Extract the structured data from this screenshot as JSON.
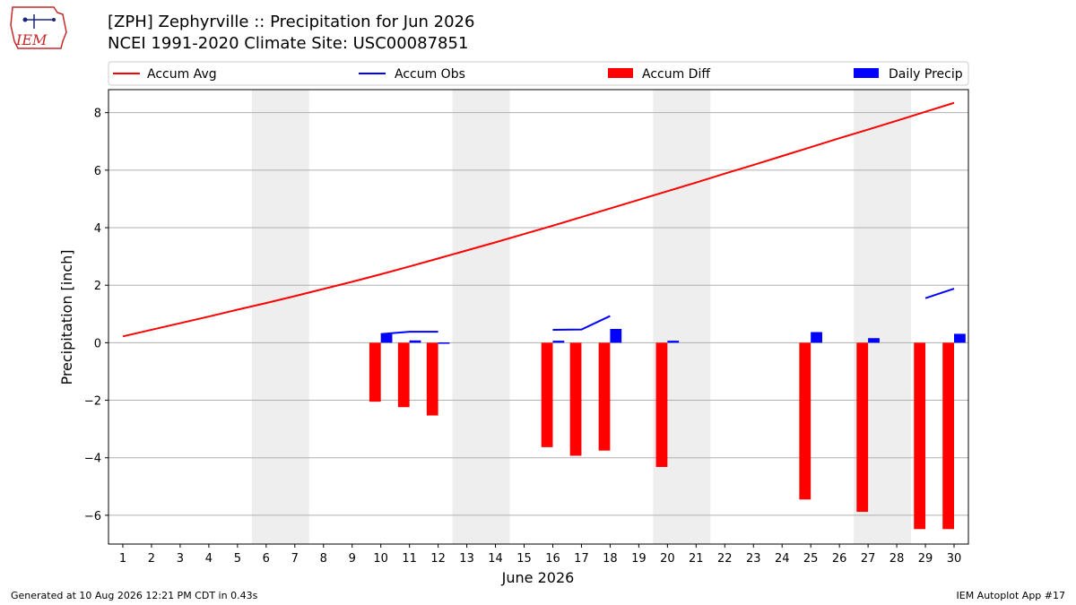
{
  "header": {
    "title_line1": "[ZPH] Zephyrville :: Precipitation for Jun 2026",
    "title_line2": "NCEI 1991-2020 Climate Site: USC00087851",
    "logo_text": "IEM"
  },
  "footer": {
    "generated": "Generated at 10 Aug 2026 12:21 PM CDT in 0.43s",
    "app": "IEM Autoplot App #17"
  },
  "colors": {
    "accum_avg": "#ff0000",
    "accum_obs": "#0000ff",
    "accum_diff": "#ff0000",
    "daily_precip": "#0000ff",
    "weekend_shade": "#eeeeee",
    "grid": "#b0b0b0"
  },
  "chart_data": {
    "type": "bar",
    "xlabel": "June 2026",
    "ylabel": "Precipitation [inch]",
    "xlim": [
      0.5,
      30.5
    ],
    "ylim": [
      -7.0,
      8.8
    ],
    "yticks": [
      -6,
      -4,
      -2,
      0,
      2,
      4,
      6,
      8
    ],
    "grid": true,
    "legend_position": "top",
    "days": [
      1,
      2,
      3,
      4,
      5,
      6,
      7,
      8,
      9,
      10,
      11,
      12,
      13,
      14,
      15,
      16,
      17,
      18,
      19,
      20,
      21,
      22,
      23,
      24,
      25,
      26,
      27,
      28,
      29,
      30
    ],
    "weekend_shading": [
      [
        6,
        7
      ],
      [
        13,
        14
      ],
      [
        20,
        21
      ],
      [
        27,
        28
      ]
    ],
    "series": [
      {
        "name": "Accum Avg",
        "kind": "line",
        "x": [
          1,
          2,
          3,
          4,
          5,
          6,
          7,
          8,
          9,
          10,
          11,
          12,
          13,
          14,
          15,
          16,
          17,
          18,
          19,
          20,
          21,
          22,
          23,
          24,
          25,
          26,
          27,
          28,
          29,
          30
        ],
        "values": [
          0.22,
          0.45,
          0.68,
          0.91,
          1.15,
          1.38,
          1.62,
          1.87,
          2.12,
          2.38,
          2.65,
          2.93,
          3.21,
          3.49,
          3.78,
          4.07,
          4.37,
          4.67,
          4.97,
          5.27,
          5.57,
          5.88,
          6.18,
          6.49,
          6.8,
          7.11,
          7.41,
          7.72,
          8.03,
          8.34
        ]
      },
      {
        "name": "Accum Obs",
        "kind": "line",
        "segments": [
          {
            "x": [
              10,
              11,
              12
            ],
            "values": [
              0.3,
              0.38,
              0.38
            ]
          },
          {
            "x": [
              16,
              17,
              18
            ],
            "values": [
              0.45,
              0.46,
              0.93
            ]
          },
          {
            "x": [
              29,
              30
            ],
            "values": [
              1.55,
              1.88
            ]
          }
        ]
      },
      {
        "name": "Accum Diff",
        "kind": "bar",
        "x": [
          10,
          11,
          12,
          16,
          17,
          18,
          20,
          25,
          27,
          29,
          30
        ],
        "values": [
          -2.05,
          -2.24,
          -2.53,
          -3.63,
          -3.93,
          -3.75,
          -4.32,
          -5.45,
          -5.88,
          -6.48,
          -6.48
        ]
      },
      {
        "name": "Daily Precip",
        "kind": "bar",
        "x": [
          10,
          11,
          12,
          16,
          18,
          20,
          25,
          27,
          30
        ],
        "values": [
          0.3,
          0.08,
          0.01,
          0.07,
          0.48,
          0.07,
          0.37,
          0.16,
          0.31
        ]
      }
    ]
  }
}
